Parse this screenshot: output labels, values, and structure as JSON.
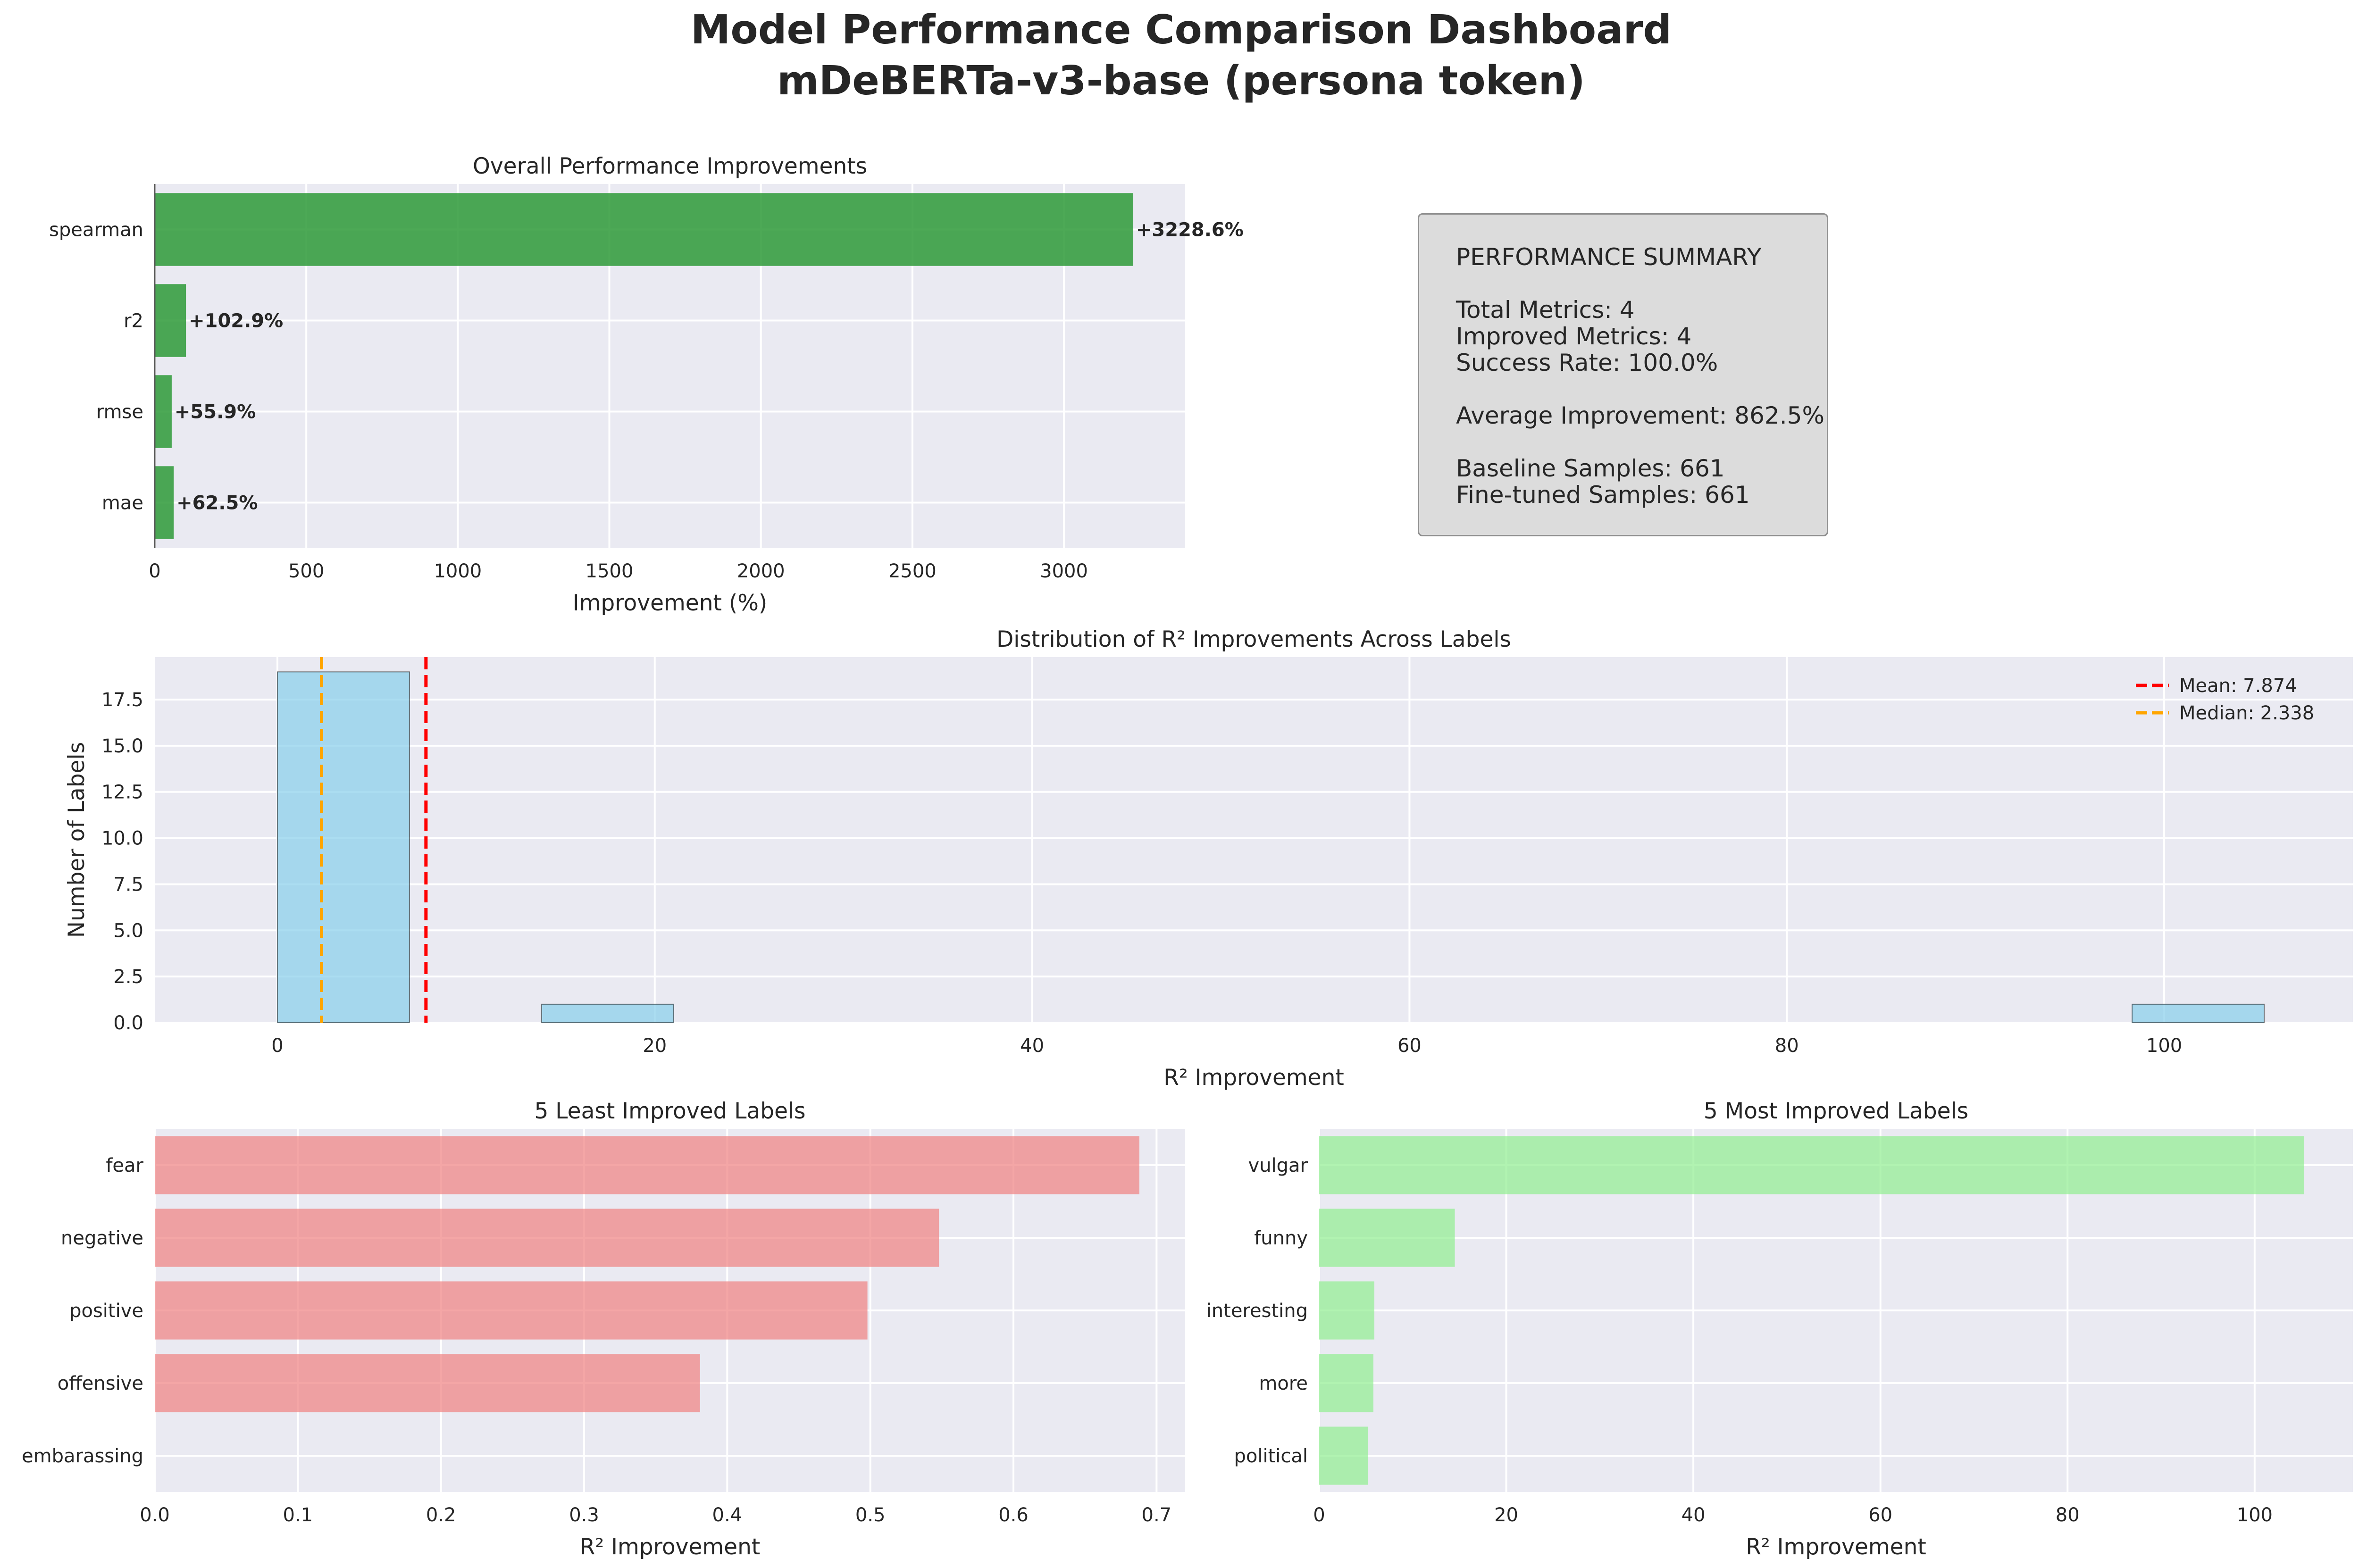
{
  "page": {
    "title": "Model Performance Comparison Dashboard",
    "subtitle": "mDeBERTa-v3-base (persona token)"
  },
  "summary": {
    "heading": "PERFORMANCE SUMMARY",
    "total_metrics": "Total Metrics: 4",
    "improved_metrics": "Improved Metrics: 4",
    "success_rate": "Success Rate: 100.0%",
    "average_improvement": "Average Improvement: 862.5%",
    "baseline_samples": "Baseline Samples: 661",
    "finetuned_samples": "Fine-tuned Samples: 661"
  },
  "colors": {
    "panel_bg": "#eaeaf2",
    "green_bar": "#2e9a38",
    "hist_bar": "#87ceeb",
    "mean_line": "#ff0000",
    "median_line": "#ffa500",
    "least_bar": "#f08080",
    "most_bar": "#90ee90"
  },
  "chart_data": [
    {
      "type": "bar",
      "orientation": "horizontal",
      "title": "Overall Performance Improvements",
      "xlabel": "Improvement (%)",
      "ylabel": "",
      "categories": [
        "spearman",
        "r2",
        "rmse",
        "mae"
      ],
      "values": [
        3228.6,
        102.9,
        55.9,
        62.5
      ],
      "data_labels": [
        "+3228.6%",
        "+102.9%",
        "+55.9%",
        "+62.5%"
      ],
      "xlim": [
        0,
        3400
      ],
      "xticks": [
        0,
        500,
        1000,
        1500,
        2000,
        2500,
        3000
      ],
      "grid": true
    },
    {
      "type": "bar",
      "subtype": "histogram",
      "title": "Distribution of R² Improvements Across Labels",
      "xlabel": "R² Improvement",
      "ylabel": "Number of Labels",
      "bins": [
        {
          "start": 0.0,
          "end": 7.0,
          "count": 19
        },
        {
          "start": 14.0,
          "end": 21.0,
          "count": 1
        },
        {
          "start": 98.3,
          "end": 105.3,
          "count": 1
        }
      ],
      "xlim": [
        -6.5,
        110
      ],
      "ylim": [
        0,
        19.8
      ],
      "xticks": [
        0,
        20,
        40,
        60,
        80,
        100
      ],
      "yticks": [
        0.0,
        2.5,
        5.0,
        7.5,
        10.0,
        12.5,
        15.0,
        17.5
      ],
      "ytick_labels": [
        "0.0",
        "2.5",
        "5.0",
        "7.5",
        "10.0",
        "12.5",
        "15.0",
        "17.5"
      ],
      "mean": 7.874,
      "median": 2.338,
      "legend": [
        "Mean: 7.874",
        "Median: 2.338"
      ],
      "legend_position": "top-right",
      "grid": true
    },
    {
      "type": "bar",
      "orientation": "horizontal",
      "title": "5 Least Improved Labels",
      "xlabel": "R² Improvement",
      "ylabel": "",
      "categories": [
        "fear",
        "negative",
        "positive",
        "offensive",
        "embarassing"
      ],
      "values": [
        0.688,
        0.548,
        0.498,
        0.381,
        0.0
      ],
      "xlim": [
        0,
        0.72
      ],
      "xticks": [
        0.0,
        0.1,
        0.2,
        0.3,
        0.4,
        0.5,
        0.6,
        0.7
      ],
      "xtick_labels": [
        "0.0",
        "0.1",
        "0.2",
        "0.3",
        "0.4",
        "0.5",
        "0.6",
        "0.7"
      ],
      "grid": true
    },
    {
      "type": "bar",
      "orientation": "horizontal",
      "title": "5 Most Improved Labels",
      "xlabel": "R² Improvement",
      "ylabel": "",
      "categories": [
        "vulgar",
        "funny",
        "interesting",
        "more",
        "political"
      ],
      "values": [
        105.3,
        14.5,
        5.9,
        5.8,
        5.2
      ],
      "xlim": [
        0,
        110.5
      ],
      "xticks": [
        0,
        20,
        40,
        60,
        80,
        100
      ],
      "grid": true
    }
  ]
}
